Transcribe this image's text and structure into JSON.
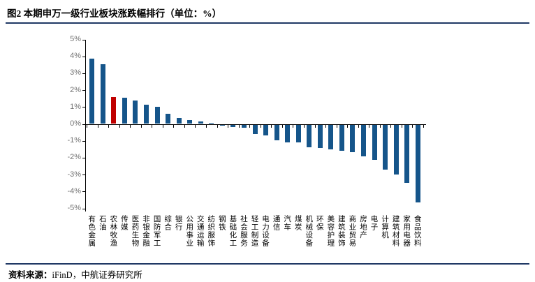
{
  "title": "图2 本期申万一级行业板块涨跌幅排行（单位：%）",
  "footer": {
    "label": "资料来源：",
    "source": "iFinD，中航证券研究所"
  },
  "colors": {
    "bar": "#15558A",
    "highlight": "#C00000",
    "rule": "#1F3864",
    "axis": "#000000",
    "tick_label": "#737373"
  },
  "chart_data": {
    "type": "bar",
    "title": "本期申万一级行业板块涨跌幅排行",
    "unit": "%",
    "categories": [
      "有色金属",
      "石油",
      "农林牧渔",
      "传媒",
      "医药生物",
      "非银金融",
      "国防军工",
      "综合",
      "银行",
      "公用事业",
      "交通运输",
      "纺织服饰",
      "钢铁",
      "基础化工",
      "社会服务",
      "轻工制造",
      "电力设备",
      "通信",
      "汽车",
      "煤炭",
      "机械设备",
      "环保",
      "美容护理",
      "建筑装饰",
      "商业贸易",
      "房地产",
      "电子",
      "计算机",
      "建筑材料",
      "家用电器",
      "食品饮料"
    ],
    "values": [
      3.85,
      3.55,
      1.61,
      1.55,
      1.4,
      1.15,
      1.0,
      0.6,
      0.36,
      0.22,
      0.15,
      0.05,
      -0.04,
      -0.15,
      -0.2,
      -0.55,
      -0.62,
      -0.92,
      -1.05,
      -1.06,
      -1.36,
      -1.37,
      -1.45,
      -1.56,
      -1.65,
      -1.9,
      -2.1,
      -2.68,
      -2.95,
      -3.46,
      -4.6
    ],
    "highlight_index": 2,
    "ylim": [
      -5,
      5
    ],
    "ytick_labels": [
      "5%",
      "4%",
      "3%",
      "2%",
      "1%",
      "0%",
      "-1%",
      "-2%",
      "-3%",
      "-4%",
      "-5%"
    ],
    "grid": false,
    "legend": null,
    "xlabel": "",
    "ylabel": ""
  }
}
